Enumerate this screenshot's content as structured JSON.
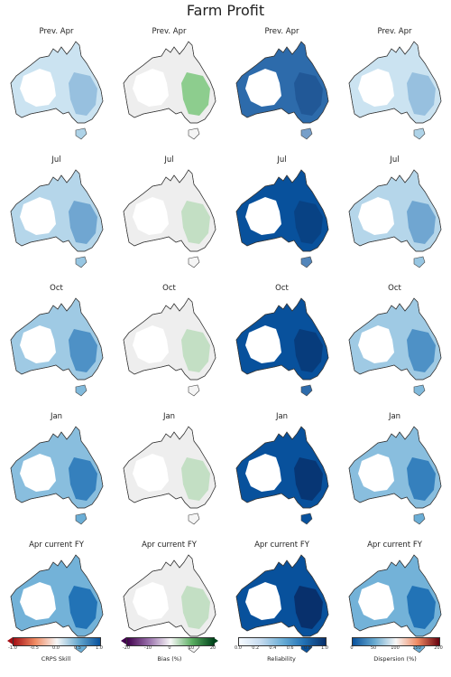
{
  "title": "Farm Profit",
  "rows": [
    {
      "labels": [
        "Prev. Apr",
        "Prev. Apr",
        "Prev. Apr",
        "Prev. Apr"
      ]
    },
    {
      "labels": [
        "Jul",
        "Jul",
        "Jul",
        "Jul"
      ]
    },
    {
      "labels": [
        "Oct",
        "Oct",
        "Oct",
        "Oct"
      ]
    },
    {
      "labels": [
        "Jan",
        "Jan",
        "Jan",
        "Jan"
      ]
    },
    {
      "labels": [
        "Apr current FY",
        "Apr current FY",
        "Apr current FY",
        "Apr current FY"
      ]
    }
  ],
  "colorbars": [
    {
      "label": "CRPS Skill",
      "ticks": [
        "-1.0",
        "-0.5",
        "0.0",
        "0.5",
        "1.0"
      ],
      "colors": [
        "#a50f15",
        "#ef8a62",
        "#f7f7f7",
        "#67a9cf",
        "#08519c"
      ],
      "extend": "min"
    },
    {
      "label": "Bias (%)",
      "ticks": [
        "-20",
        "-10",
        "0",
        "10",
        "20"
      ],
      "colors": [
        "#40004b",
        "#9970ab",
        "#f7f7f7",
        "#5aae61",
        "#00441b"
      ],
      "extend": "both"
    },
    {
      "label": "Reliability",
      "ticks": [
        "0.0",
        "0.2",
        "0.4",
        "0.6",
        "0.8",
        "1.0"
      ],
      "colors": [
        "#f7fbff",
        "#c6dbef",
        "#6baed6",
        "#2171b5",
        "#08306b"
      ],
      "extend": "none"
    },
    {
      "label": "Dispersion (%)",
      "ticks": [
        "0",
        "50",
        "100",
        "150",
        "200"
      ],
      "colors": [
        "#08519c",
        "#67a9cf",
        "#f7f7f7",
        "#ef8a62",
        "#67000d"
      ],
      "extend": "none"
    }
  ],
  "column_metrics": [
    "CRPS Skill",
    "Bias (%)",
    "Reliability",
    "Dispersion (%)"
  ]
}
